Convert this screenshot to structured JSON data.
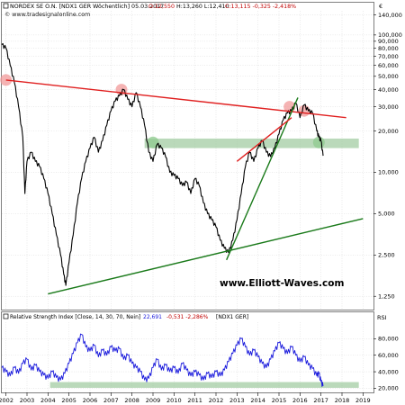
{
  "header": {
    "title": "NORDEX SE O.N. [NDX1 GER  Wöchentlich] 05.03.2017",
    "ohlc_open": "O:12,550",
    "ohlc_high_low": "H:13,260 L:12,410",
    "ohlc_close": "C:13,115 -0,325 -2,418%",
    "source": "© www.tradesignalonline.com"
  },
  "currency_symbol": "€",
  "watermark": "www.Elliott-Waves.com",
  "rsi_header": {
    "label": "Relative Strength Index [Close, 14, 30, 70, Nein]",
    "value": "22,691",
    "change": "-0,531 -2,286%",
    "symbol": "[NDX1 GER]"
  },
  "rsi_axis_label": "RSI",
  "colors": {
    "price": "#000000",
    "resistance": "#e02020",
    "support": "#1a7a1a",
    "highlight_band": "#9cc99c",
    "circle_red": "#f29a9a",
    "circle_green": "#8fc98f",
    "rsi": "#1a1adc",
    "grid": "#d9d9d9"
  },
  "chart_data": [
    {
      "type": "line",
      "title": "NORDEX SE O.N. [NDX1 GER  Wöchentlich] 05.03.2017",
      "yscale": "log",
      "ylim": [
        1.0,
        150.0
      ],
      "xlim": [
        2001.8,
        2019.5
      ],
      "y_ticks": [
        {
          "value": 1.25,
          "label": "1,250"
        },
        {
          "value": 2.5,
          "label": "2,500"
        },
        {
          "value": 5,
          "label": "5,000"
        },
        {
          "value": 10,
          "label": "10,000"
        },
        {
          "value": 20,
          "label": "20,000"
        },
        {
          "value": 30,
          "label": "30,000"
        },
        {
          "value": 40,
          "label": "40,000"
        },
        {
          "value": 50,
          "label": "50,000"
        },
        {
          "value": 60,
          "label": "60,000"
        },
        {
          "value": 70,
          "label": "70,000"
        },
        {
          "value": 80,
          "label": "80,000"
        },
        {
          "value": 90,
          "label": "90,000"
        },
        {
          "value": 100,
          "label": "100,000"
        },
        {
          "value": 140,
          "label": "140,000"
        }
      ],
      "x_ticks": [
        {
          "value": 2002,
          "label": "2002"
        },
        {
          "value": 2003,
          "label": "2003"
        },
        {
          "value": 2004,
          "label": "2004"
        },
        {
          "value": 2005,
          "label": "2005"
        },
        {
          "value": 2006,
          "label": "2006"
        },
        {
          "value": 2007,
          "label": "2007"
        },
        {
          "value": 2008,
          "label": "2008"
        },
        {
          "value": 2009,
          "label": "2009"
        },
        {
          "value": 2010,
          "label": "2010"
        },
        {
          "value": 2011,
          "label": "2011"
        },
        {
          "value": 2012,
          "label": "2012"
        },
        {
          "value": 2013,
          "label": "2013"
        },
        {
          "value": 2014,
          "label": "2014"
        },
        {
          "value": 2015,
          "label": "2015"
        },
        {
          "value": 2016,
          "label": "2016"
        },
        {
          "value": 2017,
          "label": "2017"
        },
        {
          "value": 2018,
          "label": "2018"
        },
        {
          "value": 2019,
          "label": "2019"
        }
      ],
      "series": [
        {
          "points": [
            [
              2001.8,
              85
            ],
            [
              2002.0,
              80
            ],
            [
              2002.2,
              60
            ],
            [
              2002.4,
              45
            ],
            [
              2002.6,
              30
            ],
            [
              2002.8,
              18
            ],
            [
              2002.9,
              7
            ],
            [
              2003.0,
              12
            ],
            [
              2003.2,
              14
            ],
            [
              2003.4,
              12
            ],
            [
              2003.6,
              11
            ],
            [
              2003.8,
              9
            ],
            [
              2004.0,
              7
            ],
            [
              2004.2,
              5
            ],
            [
              2004.4,
              3.5
            ],
            [
              2004.6,
              2.5
            ],
            [
              2004.75,
              1.8
            ],
            [
              2004.85,
              1.5
            ],
            [
              2005.0,
              2.2
            ],
            [
              2005.2,
              3.5
            ],
            [
              2005.4,
              6
            ],
            [
              2005.6,
              9
            ],
            [
              2005.8,
              12
            ],
            [
              2006.0,
              15
            ],
            [
              2006.2,
              18
            ],
            [
              2006.4,
              14
            ],
            [
              2006.6,
              17
            ],
            [
              2006.8,
              22
            ],
            [
              2007.0,
              28
            ],
            [
              2007.2,
              33
            ],
            [
              2007.4,
              36
            ],
            [
              2007.6,
              40
            ],
            [
              2007.8,
              34
            ],
            [
              2008.0,
              30
            ],
            [
              2008.2,
              38
            ],
            [
              2008.4,
              30
            ],
            [
              2008.6,
              22
            ],
            [
              2008.8,
              14
            ],
            [
              2009.0,
              12
            ],
            [
              2009.2,
              16
            ],
            [
              2009.4,
              15
            ],
            [
              2009.6,
              13
            ],
            [
              2009.8,
              10
            ],
            [
              2010.0,
              9.5
            ],
            [
              2010.2,
              9
            ],
            [
              2010.4,
              8
            ],
            [
              2010.6,
              8.5
            ],
            [
              2010.8,
              7
            ],
            [
              2011.0,
              9
            ],
            [
              2011.2,
              8
            ],
            [
              2011.4,
              6
            ],
            [
              2011.6,
              5
            ],
            [
              2011.8,
              4.5
            ],
            [
              2012.0,
              4
            ],
            [
              2012.2,
              3.2
            ],
            [
              2012.4,
              2.8
            ],
            [
              2012.6,
              2.6
            ],
            [
              2012.8,
              3.2
            ],
            [
              2013.0,
              4.5
            ],
            [
              2013.2,
              7
            ],
            [
              2013.4,
              11
            ],
            [
              2013.6,
              14
            ],
            [
              2013.8,
              12
            ],
            [
              2014.0,
              15
            ],
            [
              2014.2,
              17
            ],
            [
              2014.4,
              14
            ],
            [
              2014.6,
              13
            ],
            [
              2014.8,
              15
            ],
            [
              2015.0,
              19
            ],
            [
              2015.2,
              24
            ],
            [
              2015.4,
              27
            ],
            [
              2015.6,
              28
            ],
            [
              2015.8,
              32
            ],
            [
              2016.0,
              25
            ],
            [
              2016.2,
              31
            ],
            [
              2016.4,
              28
            ],
            [
              2016.6,
              27
            ],
            [
              2016.8,
              20
            ],
            [
              2016.9,
              18
            ],
            [
              2017.0,
              17
            ],
            [
              2017.1,
              13.2
            ]
          ]
        }
      ],
      "trendlines": [
        {
          "from": [
            2002.0,
            47
          ],
          "to": [
            2018.2,
            25
          ]
        },
        {
          "from": [
            2004.0,
            1.3
          ],
          "to": [
            2019.0,
            4.6
          ]
        },
        {
          "from": [
            2012.5,
            2.3
          ],
          "to": [
            2015.9,
            35
          ]
        },
        {
          "from": [
            2013.0,
            12
          ],
          "to": [
            2015.6,
            25
          ]
        }
      ],
      "highlight_band": {
        "x": [
          2008.6,
          2018.8
        ],
        "y": [
          15.0,
          17.6
        ]
      },
      "circles": [
        {
          "center": [
            2002.0,
            47
          ],
          "color": "red"
        },
        {
          "center": [
            2007.5,
            40
          ],
          "color": "red"
        },
        {
          "center": [
            2015.5,
            30
          ],
          "color": "red"
        },
        {
          "center": [
            2016.2,
            28
          ],
          "color": "red"
        },
        {
          "center": [
            2009.0,
            16.5
          ],
          "color": "green"
        },
        {
          "center": [
            2016.9,
            16.5
          ],
          "color": "green"
        }
      ]
    },
    {
      "type": "line",
      "title": "Relative Strength Index [Close, 14, 30, 70, Nein]",
      "ylim": [
        15,
        100
      ],
      "xlim": [
        2001.8,
        2019.5
      ],
      "y_ticks": [
        {
          "value": 20,
          "label": "20,000"
        },
        {
          "value": 40,
          "label": "40,000"
        },
        {
          "value": 60,
          "label": "60,000"
        },
        {
          "value": 80,
          "label": "80,000"
        }
      ],
      "series": [
        {
          "points": [
            [
              2001.8,
              45
            ],
            [
              2002.0,
              40
            ],
            [
              2002.2,
              35
            ],
            [
              2002.4,
              45
            ],
            [
              2002.6,
              38
            ],
            [
              2002.8,
              50
            ],
            [
              2003.0,
              55
            ],
            [
              2003.2,
              42
            ],
            [
              2003.4,
              48
            ],
            [
              2003.6,
              40
            ],
            [
              2003.8,
              36
            ],
            [
              2004.0,
              32
            ],
            [
              2004.2,
              40
            ],
            [
              2004.4,
              33
            ],
            [
              2004.6,
              30
            ],
            [
              2004.8,
              38
            ],
            [
              2005.0,
              50
            ],
            [
              2005.2,
              62
            ],
            [
              2005.4,
              75
            ],
            [
              2005.6,
              85
            ],
            [
              2005.8,
              70
            ],
            [
              2006.0,
              65
            ],
            [
              2006.2,
              72
            ],
            [
              2006.4,
              58
            ],
            [
              2006.6,
              66
            ],
            [
              2006.8,
              60
            ],
            [
              2007.0,
              70
            ],
            [
              2007.2,
              65
            ],
            [
              2007.4,
              68
            ],
            [
              2007.6,
              55
            ],
            [
              2007.8,
              60
            ],
            [
              2008.0,
              50
            ],
            [
              2008.2,
              45
            ],
            [
              2008.4,
              40
            ],
            [
              2008.6,
              30
            ],
            [
              2008.8,
              32
            ],
            [
              2009.0,
              45
            ],
            [
              2009.2,
              55
            ],
            [
              2009.4,
              42
            ],
            [
              2009.6,
              48
            ],
            [
              2009.8,
              40
            ],
            [
              2010.0,
              45
            ],
            [
              2010.2,
              38
            ],
            [
              2010.4,
              50
            ],
            [
              2010.6,
              42
            ],
            [
              2010.8,
              35
            ],
            [
              2011.0,
              40
            ],
            [
              2011.2,
              36
            ],
            [
              2011.4,
              30
            ],
            [
              2011.6,
              38
            ],
            [
              2011.8,
              33
            ],
            [
              2012.0,
              40
            ],
            [
              2012.2,
              35
            ],
            [
              2012.4,
              42
            ],
            [
              2012.6,
              52
            ],
            [
              2012.8,
              62
            ],
            [
              2013.0,
              72
            ],
            [
              2013.2,
              80
            ],
            [
              2013.4,
              70
            ],
            [
              2013.6,
              60
            ],
            [
              2013.8,
              66
            ],
            [
              2014.0,
              58
            ],
            [
              2014.2,
              50
            ],
            [
              2014.4,
              45
            ],
            [
              2014.6,
              55
            ],
            [
              2014.8,
              65
            ],
            [
              2015.0,
              75
            ],
            [
              2015.2,
              68
            ],
            [
              2015.4,
              62
            ],
            [
              2015.6,
              70
            ],
            [
              2015.8,
              60
            ],
            [
              2016.0,
              52
            ],
            [
              2016.2,
              58
            ],
            [
              2016.4,
              48
            ],
            [
              2016.6,
              44
            ],
            [
              2016.8,
              35
            ],
            [
              2016.9,
              38
            ],
            [
              2017.0,
              28
            ],
            [
              2017.1,
              22.7
            ]
          ]
        }
      ],
      "highlight_band": {
        "x": [
          2004.1,
          2018.8
        ],
        "y": [
          20.5,
          27.5
        ]
      }
    }
  ]
}
